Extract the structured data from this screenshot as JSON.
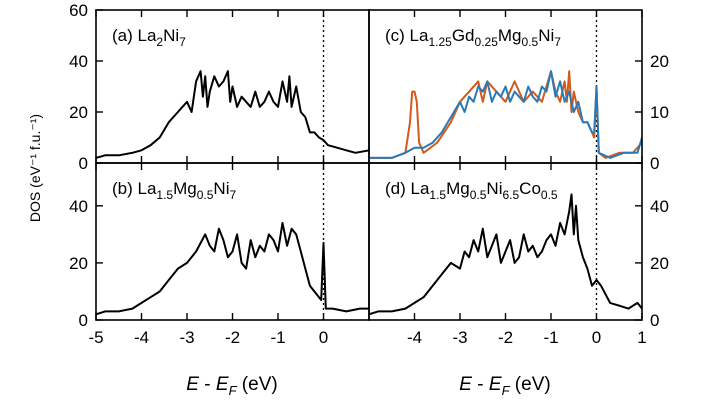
{
  "figure": {
    "ylabel": "DOS (eV⁻¹ f.u.⁻¹)",
    "xlabel_left": "E - E_F (eV)",
    "xlabel_right": "E - E_F (eV)"
  },
  "colors": {
    "line_black": "#000000",
    "line_blue": "#2a7ab8",
    "line_orange": "#d45a1a",
    "fermi": "#000000"
  },
  "chart_data": [
    {
      "id": "a",
      "type": "line",
      "label": {
        "pre": "(a) La",
        "parts": [
          [
            "2",
            "sub"
          ],
          [
            "Ni",
            ""
          ],
          [
            "7",
            "sub"
          ]
        ]
      },
      "xlim": [
        -5,
        1
      ],
      "ylim": [
        0,
        60
      ],
      "xticks": [
        -5,
        -4,
        -3,
        -2,
        -1,
        0
      ],
      "yticks": [
        0,
        20,
        40,
        60
      ],
      "fermi_line": 0,
      "series": [
        {
          "color": "black",
          "x": [
            -5,
            -4.8,
            -4.5,
            -4.2,
            -4.0,
            -3.8,
            -3.6,
            -3.4,
            -3.2,
            -3.0,
            -2.9,
            -2.8,
            -2.7,
            -2.65,
            -2.6,
            -2.55,
            -2.5,
            -2.4,
            -2.3,
            -2.2,
            -2.1,
            -2.05,
            -2.0,
            -1.9,
            -1.8,
            -1.7,
            -1.6,
            -1.5,
            -1.4,
            -1.3,
            -1.2,
            -1.1,
            -1.0,
            -0.9,
            -0.8,
            -0.75,
            -0.7,
            -0.6,
            -0.5,
            -0.4,
            -0.3,
            -0.2,
            -0.1,
            0.0,
            0.1,
            0.3,
            0.5,
            0.7,
            1.0
          ],
          "y": [
            2,
            3,
            3,
            4,
            5,
            7,
            10,
            16,
            20,
            24,
            20,
            32,
            36,
            26,
            34,
            22,
            28,
            34,
            30,
            32,
            36,
            24,
            30,
            22,
            26,
            24,
            22,
            28,
            22,
            24,
            28,
            24,
            22,
            32,
            24,
            34,
            22,
            30,
            20,
            18,
            12,
            12,
            10,
            9,
            7,
            6,
            5,
            4,
            5
          ]
        }
      ]
    },
    {
      "id": "b",
      "type": "line",
      "label": {
        "pre": "(b) La",
        "parts": [
          [
            "1.5",
            "sub"
          ],
          [
            "Mg",
            ""
          ],
          [
            "0.5",
            "sub"
          ],
          [
            "Ni",
            ""
          ],
          [
            "7",
            "sub"
          ]
        ]
      },
      "xlim": [
        -5,
        1
      ],
      "ylim": [
        0,
        55
      ],
      "xticks": [
        -5,
        -4,
        -3,
        -2,
        -1,
        0
      ],
      "yticks": [
        0,
        20,
        40
      ],
      "fermi_line": 0,
      "series": [
        {
          "color": "black",
          "x": [
            -5,
            -4.8,
            -4.5,
            -4.2,
            -4.0,
            -3.8,
            -3.6,
            -3.4,
            -3.2,
            -3.0,
            -2.8,
            -2.6,
            -2.5,
            -2.4,
            -2.3,
            -2.2,
            -2.1,
            -2.0,
            -1.9,
            -1.8,
            -1.7,
            -1.6,
            -1.5,
            -1.4,
            -1.3,
            -1.2,
            -1.1,
            -1.0,
            -0.9,
            -0.8,
            -0.7,
            -0.6,
            -0.5,
            -0.4,
            -0.3,
            -0.2,
            -0.1,
            -0.05,
            0.0,
            0.05,
            0.2,
            0.5,
            0.8,
            1.0
          ],
          "y": [
            2,
            3,
            3,
            4,
            6,
            8,
            10,
            14,
            18,
            20,
            24,
            30,
            26,
            24,
            32,
            28,
            22,
            24,
            30,
            20,
            18,
            28,
            22,
            26,
            24,
            30,
            28,
            24,
            34,
            26,
            32,
            30,
            24,
            18,
            12,
            10,
            8,
            7,
            27,
            4,
            4,
            3,
            4,
            4
          ]
        }
      ]
    },
    {
      "id": "c",
      "type": "line",
      "label": {
        "pre": "(c) La",
        "parts": [
          [
            "1.25",
            "sub"
          ],
          [
            "Gd",
            ""
          ],
          [
            "0.25",
            "sub"
          ],
          [
            "Mg",
            ""
          ],
          [
            "0.5",
            "sub"
          ],
          [
            "Ni",
            ""
          ],
          [
            "7",
            "sub"
          ]
        ]
      },
      "xlim": [
        -5,
        1
      ],
      "ylim": [
        0,
        30
      ],
      "xticks": [
        -4,
        -3,
        -2,
        -1,
        0,
        1
      ],
      "yticks": [
        0,
        10,
        20
      ],
      "fermi_line": 0,
      "series": [
        {
          "color": "orange",
          "x": [
            -5,
            -4.5,
            -4.2,
            -4.1,
            -4.05,
            -4.0,
            -3.95,
            -3.9,
            -3.8,
            -3.5,
            -3.2,
            -3.0,
            -2.8,
            -2.6,
            -2.5,
            -2.4,
            -2.2,
            -2.0,
            -1.8,
            -1.6,
            -1.4,
            -1.2,
            -1.0,
            -0.9,
            -0.8,
            -0.7,
            -0.65,
            -0.6,
            -0.55,
            -0.5,
            -0.4,
            -0.3,
            -0.2,
            -0.1,
            -0.05,
            0.0,
            0.05,
            0.2,
            0.5,
            0.8,
            1.0
          ],
          "y": [
            1,
            1,
            2,
            8,
            14,
            14,
            12,
            4,
            2,
            4,
            8,
            12,
            14,
            16,
            12,
            16,
            14,
            12,
            16,
            12,
            14,
            12,
            18,
            14,
            12,
            16,
            12,
            18,
            10,
            14,
            10,
            8,
            8,
            6,
            5,
            15,
            2,
            1,
            2,
            2,
            4
          ]
        },
        {
          "color": "blue",
          "x": [
            -5,
            -4.5,
            -4.2,
            -4.0,
            -3.8,
            -3.6,
            -3.4,
            -3.2,
            -3.0,
            -2.9,
            -2.8,
            -2.7,
            -2.6,
            -2.5,
            -2.4,
            -2.3,
            -2.2,
            -2.1,
            -2.0,
            -1.9,
            -1.8,
            -1.7,
            -1.6,
            -1.5,
            -1.4,
            -1.3,
            -1.2,
            -1.1,
            -1.0,
            -0.9,
            -0.8,
            -0.7,
            -0.6,
            -0.5,
            -0.4,
            -0.3,
            -0.2,
            -0.1,
            -0.05,
            0.0,
            0.05,
            0.3,
            0.6,
            0.9,
            1.0
          ],
          "y": [
            1,
            1,
            2,
            3,
            3,
            4,
            6,
            9,
            12,
            10,
            13,
            12,
            15,
            14,
            16,
            12,
            14,
            13,
            15,
            12,
            14,
            13,
            12,
            15,
            13,
            12,
            15,
            14,
            18,
            13,
            16,
            12,
            14,
            10,
            12,
            8,
            8,
            6,
            6,
            15,
            2,
            1,
            2,
            2,
            5
          ]
        }
      ]
    },
    {
      "id": "d",
      "type": "line",
      "label": {
        "pre": "(d) La",
        "parts": [
          [
            "1.5",
            "sub"
          ],
          [
            "Mg",
            ""
          ],
          [
            "0.5",
            "sub"
          ],
          [
            "Ni",
            ""
          ],
          [
            "6.5",
            "sub"
          ],
          [
            "Co",
            ""
          ],
          [
            "0.5",
            "sub"
          ]
        ]
      },
      "xlim": [
        -5,
        1
      ],
      "ylim": [
        0,
        55
      ],
      "xticks": [
        -4,
        -3,
        -2,
        -1,
        0,
        1
      ],
      "yticks": [
        0,
        20,
        40
      ],
      "fermi_line": 0,
      "series": [
        {
          "color": "black",
          "x": [
            -5,
            -4.8,
            -4.5,
            -4.2,
            -4.0,
            -3.8,
            -3.6,
            -3.4,
            -3.2,
            -3.0,
            -2.9,
            -2.8,
            -2.7,
            -2.6,
            -2.5,
            -2.4,
            -2.3,
            -2.2,
            -2.1,
            -2.0,
            -1.9,
            -1.8,
            -1.7,
            -1.6,
            -1.5,
            -1.4,
            -1.3,
            -1.2,
            -1.1,
            -1.0,
            -0.9,
            -0.8,
            -0.7,
            -0.6,
            -0.55,
            -0.5,
            -0.45,
            -0.4,
            -0.3,
            -0.2,
            -0.1,
            0.0,
            0.1,
            0.3,
            0.5,
            0.7,
            0.9,
            1.0
          ],
          "y": [
            2,
            3,
            3,
            4,
            6,
            8,
            12,
            16,
            20,
            18,
            24,
            22,
            28,
            24,
            32,
            22,
            26,
            30,
            20,
            24,
            28,
            20,
            22,
            30,
            24,
            26,
            22,
            24,
            28,
            30,
            26,
            34,
            30,
            38,
            44,
            30,
            40,
            28,
            22,
            18,
            12,
            14,
            12,
            6,
            5,
            4,
            6,
            4
          ]
        }
      ]
    }
  ]
}
